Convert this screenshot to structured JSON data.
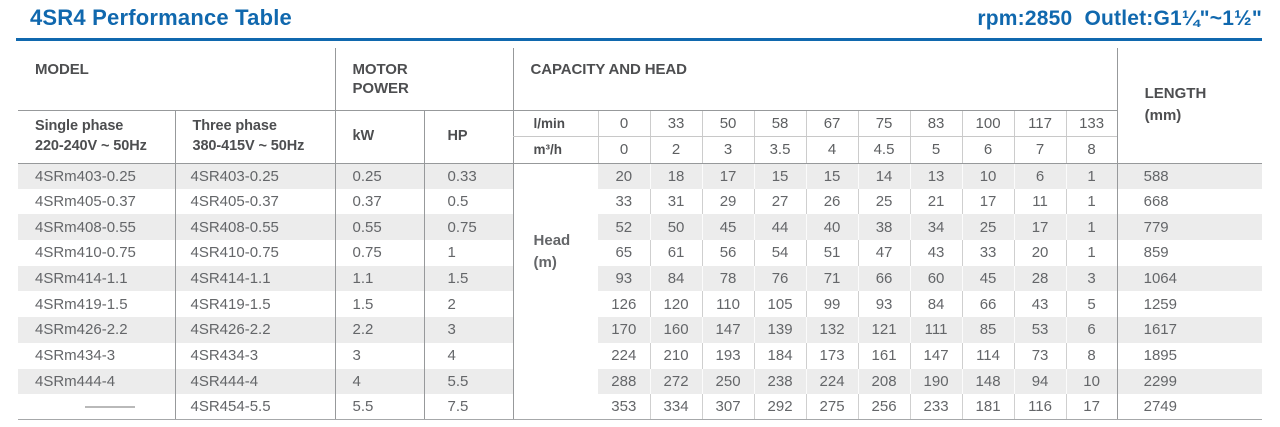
{
  "header": {
    "title": "4SR4 Performance Table",
    "spec": "rpm:2850  Outlet:G1¼\"~1½\"",
    "accent_color": "#1068ae"
  },
  "table": {
    "columns": {
      "model_group": "MODEL",
      "motor_group": "MOTOR\nPOWER",
      "capacity_group": "CAPACITY AND HEAD",
      "length_group": "LENGTH\n(mm)",
      "single_phase": "Single phase\n220-240V ~ 50Hz",
      "three_phase": "Three phase\n380-415V ~ 50Hz",
      "kw": "kW",
      "hp": "HP",
      "lmin_unit": "l/min",
      "m3h_unit": "m³/h",
      "head_label": "Head\n(m)"
    },
    "lmin": [
      "0",
      "33",
      "50",
      "58",
      "67",
      "75",
      "83",
      "100",
      "117",
      "133"
    ],
    "m3h": [
      "0",
      "2",
      "3",
      "3.5",
      "4",
      "4.5",
      "5",
      "6",
      "7",
      "8"
    ],
    "rows": [
      {
        "single": "4SRm403-0.25",
        "three": "4SR403-0.25",
        "kw": "0.25",
        "hp": "0.33",
        "head": [
          "20",
          "18",
          "17",
          "15",
          "15",
          "14",
          "13",
          "10",
          "6",
          "1"
        ],
        "length": "588"
      },
      {
        "single": "4SRm405-0.37",
        "three": "4SR405-0.37",
        "kw": "0.37",
        "hp": "0.5",
        "head": [
          "33",
          "31",
          "29",
          "27",
          "26",
          "25",
          "21",
          "17",
          "11",
          "1"
        ],
        "length": "668"
      },
      {
        "single": "4SRm408-0.55",
        "three": "4SR408-0.55",
        "kw": "0.55",
        "hp": "0.75",
        "head": [
          "52",
          "50",
          "45",
          "44",
          "40",
          "38",
          "34",
          "25",
          "17",
          "1"
        ],
        "length": "779"
      },
      {
        "single": "4SRm410-0.75",
        "three": "4SR410-0.75",
        "kw": "0.75",
        "hp": "1",
        "head": [
          "65",
          "61",
          "56",
          "54",
          "51",
          "47",
          "43",
          "33",
          "20",
          "1"
        ],
        "length": "859"
      },
      {
        "single": "4SRm414-1.1",
        "three": "4SR414-1.1",
        "kw": "1.1",
        "hp": "1.5",
        "head": [
          "93",
          "84",
          "78",
          "76",
          "71",
          "66",
          "60",
          "45",
          "28",
          "3"
        ],
        "length": "1064"
      },
      {
        "single": "4SRm419-1.5",
        "three": "4SR419-1.5",
        "kw": "1.5",
        "hp": "2",
        "head": [
          "126",
          "120",
          "110",
          "105",
          "99",
          "93",
          "84",
          "66",
          "43",
          "5"
        ],
        "length": "1259"
      },
      {
        "single": "4SRm426-2.2",
        "three": "4SR426-2.2",
        "kw": "2.2",
        "hp": "3",
        "head": [
          "170",
          "160",
          "147",
          "139",
          "132",
          "121",
          "111",
          "85",
          "53",
          "6"
        ],
        "length": "1617"
      },
      {
        "single": "4SRm434-3",
        "three": "4SR434-3",
        "kw": "3",
        "hp": "4",
        "head": [
          "224",
          "210",
          "193",
          "184",
          "173",
          "161",
          "147",
          "114",
          "73",
          "8"
        ],
        "length": "1895"
      },
      {
        "single": "4SRm444-4",
        "three": "4SR444-4",
        "kw": "4",
        "hp": "5.5",
        "head": [
          "288",
          "272",
          "250",
          "238",
          "224",
          "208",
          "190",
          "148",
          "94",
          "10"
        ],
        "length": "2299"
      },
      {
        "single": "",
        "three": "4SR454-5.5",
        "kw": "5.5",
        "hp": "7.5",
        "head": [
          "353",
          "334",
          "307",
          "292",
          "275",
          "256",
          "233",
          "181",
          "116",
          "17"
        ],
        "length": "2749"
      }
    ]
  }
}
